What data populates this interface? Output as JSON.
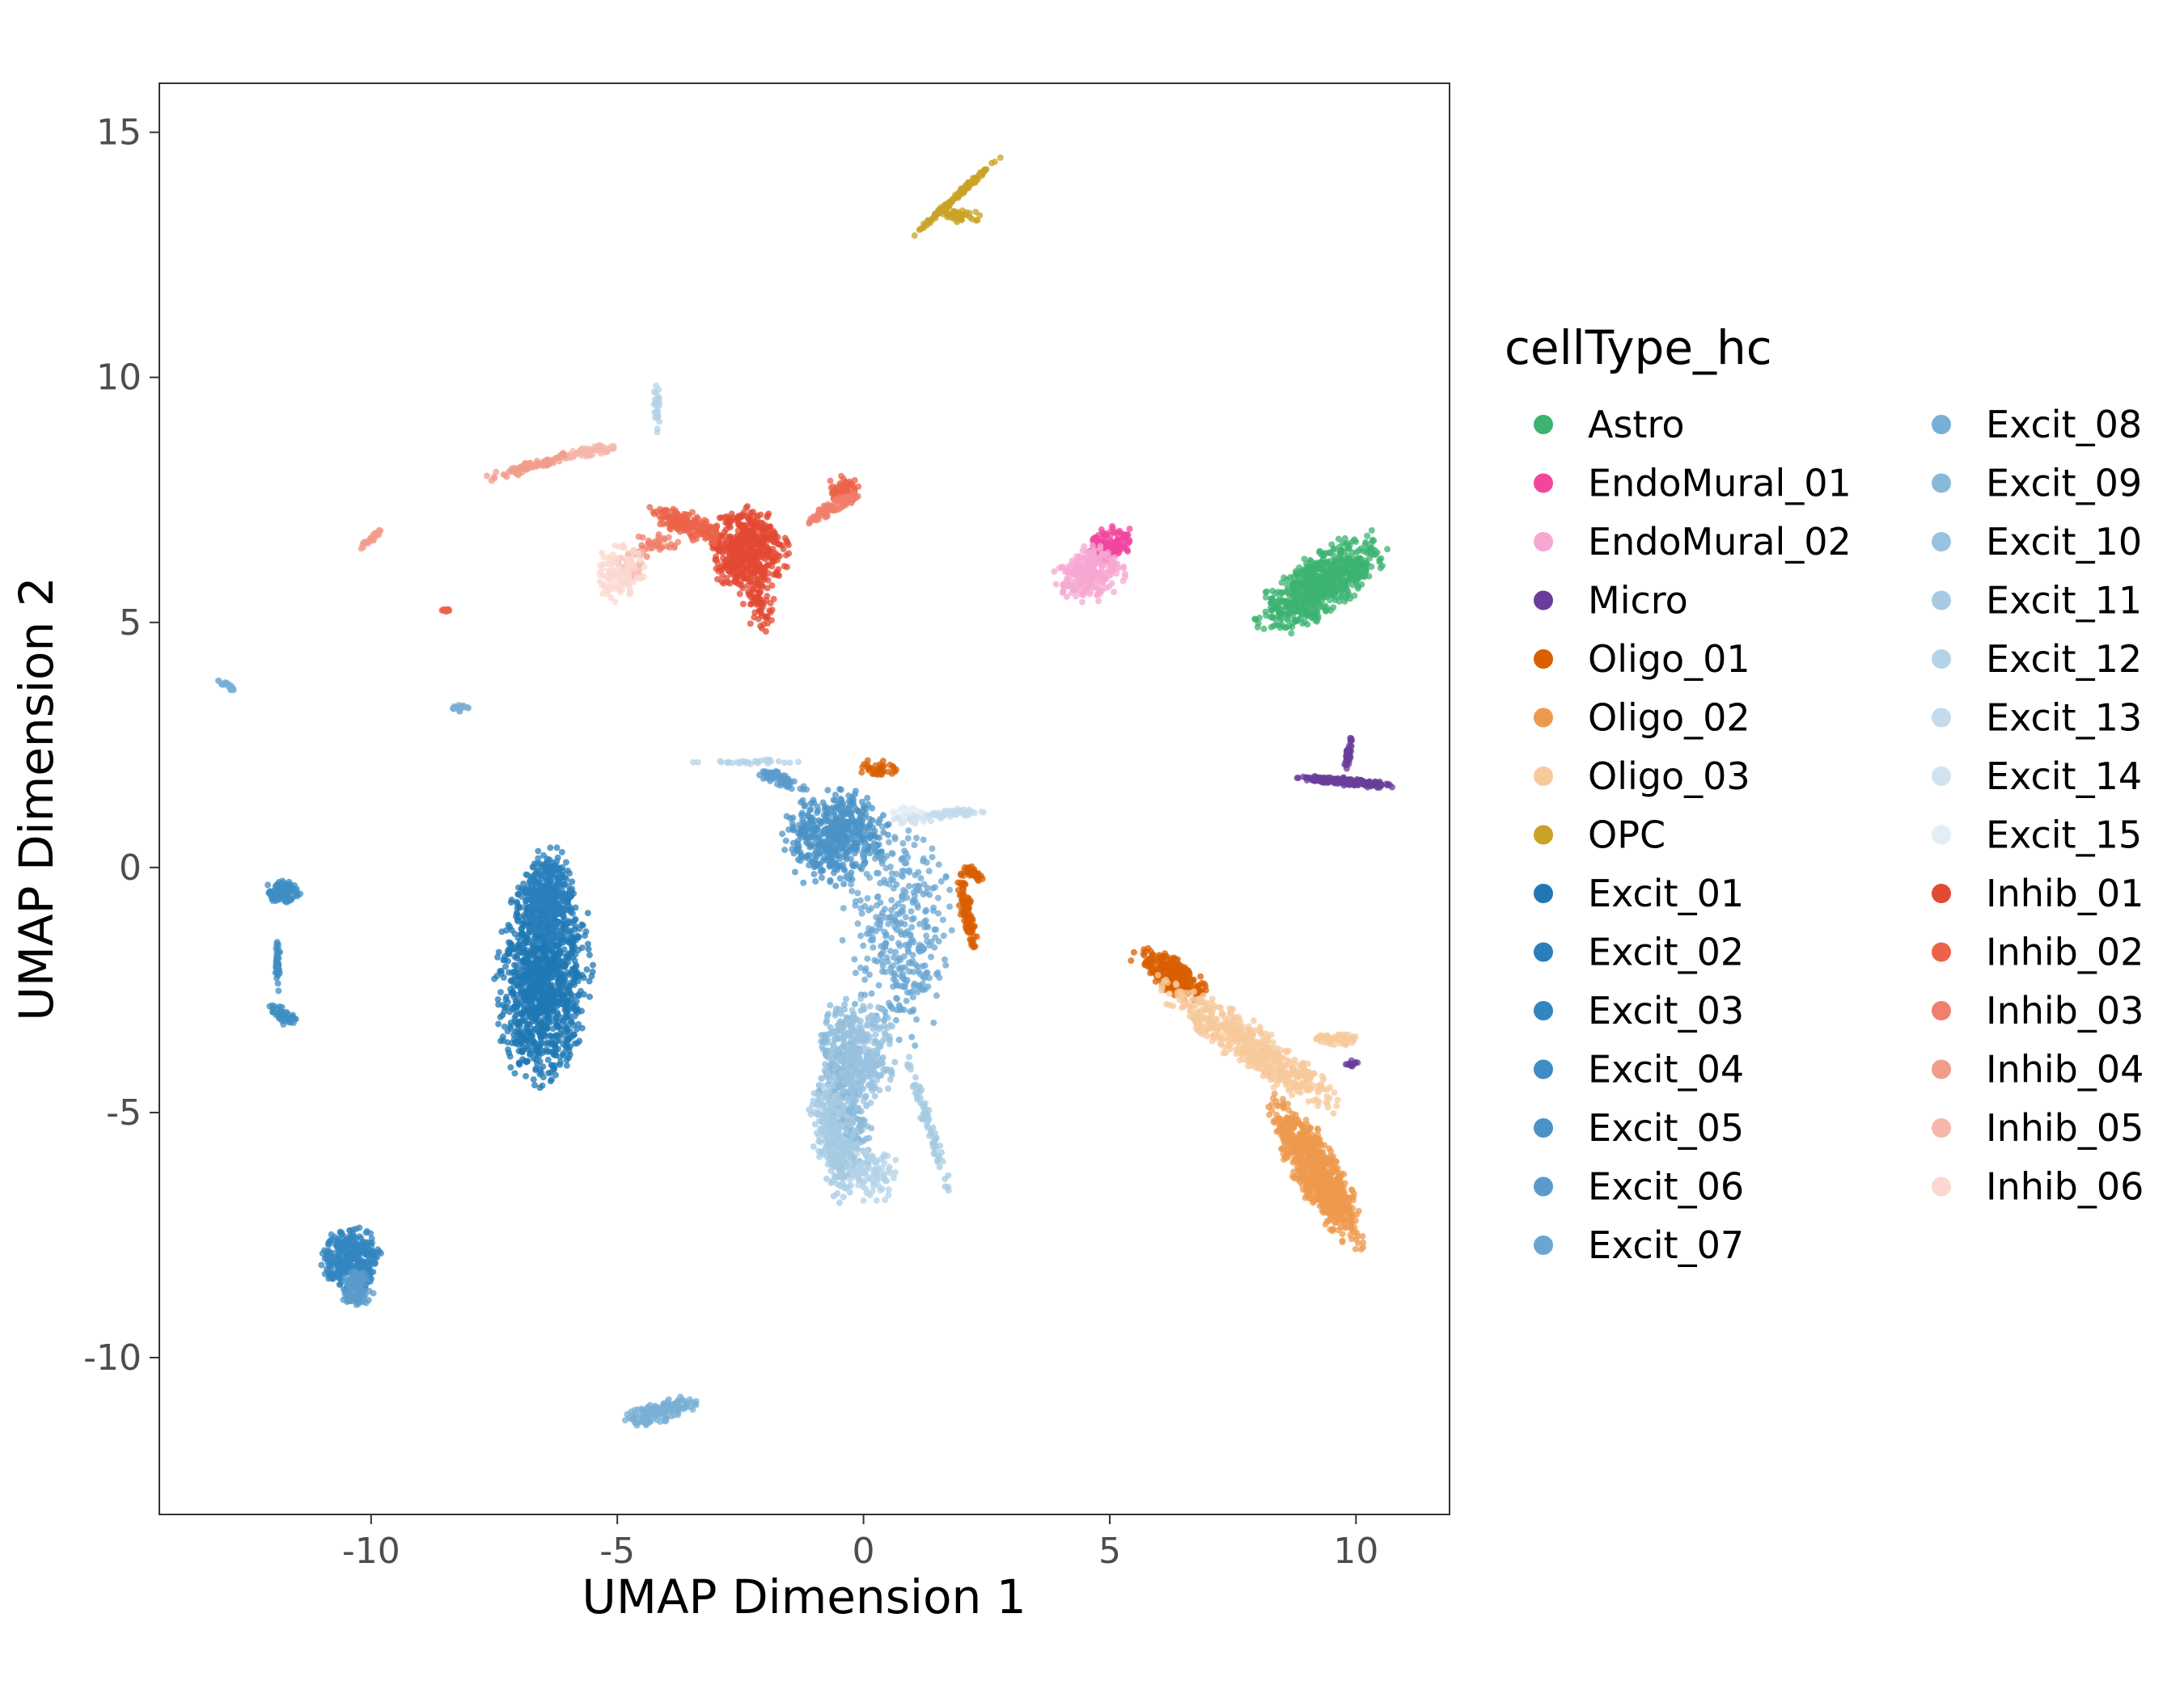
{
  "chart_data": {
    "type": "scatter",
    "title": "",
    "xlabel": "UMAP Dimension 1",
    "ylabel": "UMAP Dimension 2",
    "xlim": [
      -14.3,
      11.9
    ],
    "ylim": [
      -13.2,
      16.0
    ],
    "x_ticks": [
      -10,
      -5,
      0,
      5,
      10
    ],
    "y_ticks": [
      15,
      10,
      5,
      0,
      -5,
      -10
    ],
    "x_tick_labels": [
      "-10",
      "-5",
      "0",
      "5",
      "10"
    ],
    "y_tick_labels": [
      "15",
      "10",
      "5",
      "0",
      "-5",
      "-10"
    ],
    "grid": false,
    "legend_title": "cellType_hc",
    "legend_placement": "right",
    "series": [
      {
        "name": "Astro",
        "color": "#3CB371",
        "clusters": [
          {
            "cx": 9.3,
            "cy": 5.8,
            "rx": 1.4,
            "ry": 0.55,
            "angle": 35,
            "n": 700
          }
        ]
      },
      {
        "name": "EndoMural_01",
        "color": "#F2469E",
        "clusters": [
          {
            "cx": 5.0,
            "cy": 6.6,
            "rx": 0.45,
            "ry": 0.3,
            "angle": 25,
            "n": 140
          }
        ]
      },
      {
        "name": "EndoMural_02",
        "color": "#F7A8D2",
        "clusters": [
          {
            "cx": 4.6,
            "cy": 6.0,
            "rx": 0.65,
            "ry": 0.5,
            "angle": 20,
            "n": 260
          }
        ]
      },
      {
        "name": "Micro",
        "color": "#6A3D9A",
        "clusters": [
          {
            "cx": 9.8,
            "cy": 1.75,
            "rx": 0.9,
            "ry": 0.07,
            "angle": -5,
            "n": 220
          },
          {
            "cx": 9.85,
            "cy": 2.3,
            "rx": 0.35,
            "ry": 0.05,
            "angle": 80,
            "n": 50
          },
          {
            "cx": 9.9,
            "cy": -4.0,
            "rx": 0.15,
            "ry": 0.06,
            "angle": 0,
            "n": 12
          }
        ]
      },
      {
        "name": "Oligo_01",
        "color": "#D95F02",
        "clusters": [
          {
            "cx": 6.3,
            "cy": -2.2,
            "rx": 0.75,
            "ry": 0.3,
            "angle": -35,
            "n": 260
          },
          {
            "cx": 2.1,
            "cy": -0.9,
            "rx": 0.9,
            "ry": 0.12,
            "angle": -80,
            "n": 110
          },
          {
            "cx": 0.3,
            "cy": 2.0,
            "rx": 0.35,
            "ry": 0.2,
            "angle": 0,
            "n": 40
          },
          {
            "cx": 2.2,
            "cy": -0.1,
            "rx": 0.25,
            "ry": 0.1,
            "angle": -30,
            "n": 40
          }
        ]
      },
      {
        "name": "Oligo_02",
        "color": "#EE9A4D",
        "clusters": [
          {
            "cx": 9.2,
            "cy": -6.2,
            "rx": 1.55,
            "ry": 0.42,
            "angle": -60,
            "n": 800
          }
        ]
      },
      {
        "name": "Oligo_03",
        "color": "#F7CA9C",
        "clusters": [
          {
            "cx": 7.8,
            "cy": -3.6,
            "rx": 2.0,
            "ry": 0.4,
            "angle": -35,
            "n": 550
          },
          {
            "cx": 9.6,
            "cy": -3.5,
            "rx": 0.5,
            "ry": 0.12,
            "angle": 0,
            "n": 50
          }
        ]
      },
      {
        "name": "OPC",
        "color": "#C9A227",
        "clusters": [
          {
            "cx": 1.9,
            "cy": 13.7,
            "rx": 1.1,
            "ry": 0.05,
            "angle": 42,
            "n": 140
          },
          {
            "cx": 2.0,
            "cy": 13.3,
            "rx": 0.45,
            "ry": 0.12,
            "angle": 0,
            "n": 40
          }
        ]
      },
      {
        "name": "Excit_01",
        "color": "#1F78B4",
        "clusters": [
          {
            "cx": -6.5,
            "cy": -2.2,
            "rx": 0.85,
            "ry": 1.95,
            "angle": -4,
            "n": 1200
          }
        ]
      },
      {
        "name": "Excit_02",
        "color": "#2A7FBB",
        "clusters": [
          {
            "cx": -6.4,
            "cy": -0.6,
            "rx": 0.5,
            "ry": 0.9,
            "angle": 0,
            "n": 300
          }
        ]
      },
      {
        "name": "Excit_03",
        "color": "#3385C0",
        "clusters": [
          {
            "cx": -10.4,
            "cy": -8.0,
            "rx": 0.55,
            "ry": 0.6,
            "angle": 0,
            "n": 350
          }
        ]
      },
      {
        "name": "Excit_04",
        "color": "#3E8DC4",
        "clusters": [
          {
            "cx": -11.8,
            "cy": -0.5,
            "rx": 0.35,
            "ry": 0.22,
            "angle": 0,
            "n": 100
          },
          {
            "cx": -11.8,
            "cy": -3.0,
            "rx": 0.3,
            "ry": 0.15,
            "angle": -30,
            "n": 50
          },
          {
            "cx": -11.9,
            "cy": -2.0,
            "rx": 0.05,
            "ry": 0.55,
            "angle": 0,
            "n": 40
          }
        ]
      },
      {
        "name": "Excit_05",
        "color": "#4B93C7",
        "clusters": [
          {
            "cx": -0.6,
            "cy": 0.6,
            "rx": 1.0,
            "ry": 0.85,
            "angle": 20,
            "n": 500
          }
        ]
      },
      {
        "name": "Excit_06",
        "color": "#5A9BCB",
        "clusters": [
          {
            "cx": -10.3,
            "cy": -8.6,
            "rx": 0.3,
            "ry": 0.4,
            "angle": 0,
            "n": 100
          },
          {
            "cx": -1.7,
            "cy": 1.8,
            "rx": 0.55,
            "ry": 0.12,
            "angle": -20,
            "n": 60
          }
        ]
      },
      {
        "name": "Excit_07",
        "color": "#6AA6D1",
        "clusters": [
          {
            "cx": 0.7,
            "cy": -1.3,
            "rx": 1.0,
            "ry": 2.1,
            "angle": 0,
            "n": 350
          }
        ]
      },
      {
        "name": "Excit_08",
        "color": "#79AFD5",
        "clusters": [
          {
            "cx": -4.1,
            "cy": -11.1,
            "rx": 0.8,
            "ry": 0.2,
            "angle": 15,
            "n": 150
          },
          {
            "cx": -8.2,
            "cy": 3.25,
            "rx": 0.18,
            "ry": 0.07,
            "angle": 0,
            "n": 20
          },
          {
            "cx": -12.9,
            "cy": 3.7,
            "rx": 0.2,
            "ry": 0.05,
            "angle": -30,
            "n": 20
          }
        ]
      },
      {
        "name": "Excit_09",
        "color": "#89B9DA",
        "clusters": [
          {
            "cx": -0.4,
            "cy": -4.5,
            "rx": 0.5,
            "ry": 1.7,
            "angle": 5,
            "n": 400
          }
        ]
      },
      {
        "name": "Excit_10",
        "color": "#98C2DF",
        "clusters": [
          {
            "cx": 0.0,
            "cy": -3.8,
            "rx": 0.6,
            "ry": 1.0,
            "angle": 0,
            "n": 250
          }
        ]
      },
      {
        "name": "Excit_11",
        "color": "#A6CBE3",
        "clusters": [
          {
            "cx": -0.6,
            "cy": -5.5,
            "rx": 0.4,
            "ry": 1.2,
            "angle": 10,
            "n": 250
          },
          {
            "cx": 1.3,
            "cy": -5.2,
            "rx": 0.12,
            "ry": 1.4,
            "angle": 18,
            "n": 80
          }
        ]
      },
      {
        "name": "Excit_12",
        "color": "#B4D3E8",
        "clusters": [
          {
            "cx": 0.2,
            "cy": -6.3,
            "rx": 0.55,
            "ry": 0.5,
            "angle": 0,
            "n": 100
          },
          {
            "cx": -4.2,
            "cy": 9.3,
            "rx": 0.06,
            "ry": 0.6,
            "angle": 0,
            "n": 30
          },
          {
            "cx": -2.5,
            "cy": 2.15,
            "rx": 1.0,
            "ry": 0.06,
            "angle": 0,
            "n": 30
          }
        ]
      },
      {
        "name": "Excit_13",
        "color": "#C3DBEC",
        "clusters": [
          {
            "cx": 1.8,
            "cy": 1.1,
            "rx": 0.7,
            "ry": 0.08,
            "angle": 5,
            "n": 60
          }
        ]
      },
      {
        "name": "Excit_14",
        "color": "#D1E3F0",
        "clusters": [
          {
            "cx": 1.0,
            "cy": 1.0,
            "rx": 0.4,
            "ry": 0.1,
            "angle": 0,
            "n": 30
          }
        ]
      },
      {
        "name": "Excit_15",
        "color": "#E2EEF6",
        "clusters": [
          {
            "cx": 0.9,
            "cy": 1.15,
            "rx": 0.3,
            "ry": 0.12,
            "angle": 0,
            "n": 20
          }
        ]
      },
      {
        "name": "Inhib_01",
        "color": "#E34A33",
        "clusters": [
          {
            "cx": -2.4,
            "cy": 6.5,
            "rx": 0.75,
            "ry": 0.8,
            "angle": 0,
            "n": 550
          },
          {
            "cx": -2.1,
            "cy": 5.3,
            "rx": 0.3,
            "ry": 0.5,
            "angle": 10,
            "n": 60
          }
        ]
      },
      {
        "name": "Inhib_02",
        "color": "#EC6349",
        "clusters": [
          {
            "cx": -3.6,
            "cy": 7.0,
            "rx": 0.75,
            "ry": 0.25,
            "angle": -20,
            "n": 150
          },
          {
            "cx": -0.4,
            "cy": 7.7,
            "rx": 0.3,
            "ry": 0.25,
            "angle": 0,
            "n": 80
          },
          {
            "cx": -8.5,
            "cy": 5.25,
            "rx": 0.08,
            "ry": 0.05,
            "angle": 0,
            "n": 10
          }
        ]
      },
      {
        "name": "Inhib_03",
        "color": "#F07F6C",
        "clusters": [
          {
            "cx": -0.7,
            "cy": 7.3,
            "rx": 0.6,
            "ry": 0.12,
            "angle": 30,
            "n": 80
          },
          {
            "cx": -4.2,
            "cy": 6.6,
            "rx": 0.4,
            "ry": 0.25,
            "angle": 0,
            "n": 40
          }
        ]
      },
      {
        "name": "Inhib_04",
        "color": "#F19C8B",
        "clusters": [
          {
            "cx": -6.7,
            "cy": 8.2,
            "rx": 1.0,
            "ry": 0.1,
            "angle": 15,
            "n": 90
          },
          {
            "cx": -10.0,
            "cy": 6.7,
            "rx": 0.35,
            "ry": 0.06,
            "angle": 40,
            "n": 30
          }
        ]
      },
      {
        "name": "Inhib_05",
        "color": "#F6B7AA",
        "clusters": [
          {
            "cx": -5.5,
            "cy": 8.5,
            "rx": 0.5,
            "ry": 0.1,
            "angle": 10,
            "n": 60
          },
          {
            "cx": -4.7,
            "cy": 6.2,
            "rx": 0.25,
            "ry": 0.3,
            "angle": 0,
            "n": 40
          }
        ]
      },
      {
        "name": "Inhib_06",
        "color": "#FBD8D0",
        "clusters": [
          {
            "cx": -5.0,
            "cy": 6.0,
            "rx": 0.5,
            "ry": 0.55,
            "angle": 10,
            "n": 120
          }
        ]
      }
    ]
  }
}
